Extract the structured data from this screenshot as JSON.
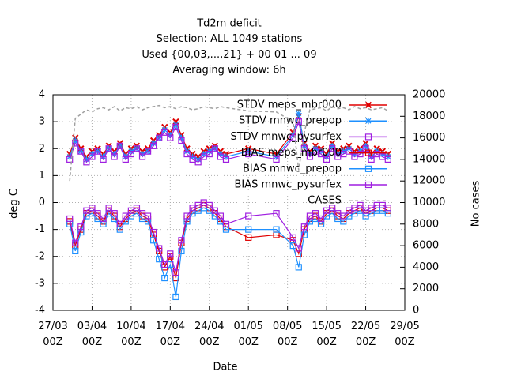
{
  "chart_data": {
    "type": "line",
    "title_lines": [
      "Td2m deficit",
      "Selection: ALL    1049 stations",
      "Used {00,03,...,21} + 00 01 ... 09",
      "Averaging window:  6h"
    ],
    "xlabel": "Date",
    "ylabel": "deg C",
    "y2label": "No cases",
    "x": [
      3,
      4,
      5,
      6,
      7,
      8,
      9,
      10,
      11,
      12,
      13,
      14,
      15,
      16,
      17,
      18,
      19,
      20,
      21,
      22,
      23,
      24,
      25,
      26,
      27,
      28,
      29,
      30,
      31,
      35,
      40,
      43,
      44,
      45,
      46,
      47,
      48,
      49,
      50,
      51,
      52,
      53,
      54,
      55,
      56,
      57,
      58,
      59,
      60
    ],
    "xlim": [
      0,
      63
    ],
    "xticks": [
      {
        "value": 0,
        "label": "27/03 00Z"
      },
      {
        "value": 7,
        "label": "03/04 00Z"
      },
      {
        "value": 14,
        "label": "10/04 00Z"
      },
      {
        "value": 21,
        "label": "17/04 00Z"
      },
      {
        "value": 28,
        "label": "24/04 00Z"
      },
      {
        "value": 35,
        "label": "01/05 00Z"
      },
      {
        "value": 42,
        "label": "08/05 00Z"
      },
      {
        "value": 49,
        "label": "15/05 00Z"
      },
      {
        "value": 56,
        "label": "22/05 00Z"
      },
      {
        "value": 63,
        "label": "29/05 00Z"
      }
    ],
    "ylim": [
      -4,
      4
    ],
    "yticks": [
      -4,
      -3,
      -2,
      -1,
      0,
      1,
      2,
      3,
      4
    ],
    "y2lim": [
      0,
      20000
    ],
    "y2ticks": [
      0,
      2000,
      4000,
      6000,
      8000,
      10000,
      12000,
      14000,
      16000,
      18000,
      20000
    ],
    "grid": true,
    "legend": "upper right",
    "series": [
      {
        "name": "STDV meps_mbr000",
        "color": "#e00000",
        "marker": "cross",
        "values": [
          1.8,
          2.4,
          2.0,
          1.7,
          1.9,
          2.0,
          1.8,
          2.1,
          1.9,
          2.2,
          1.8,
          2.0,
          2.1,
          1.9,
          2.0,
          2.3,
          2.5,
          2.8,
          2.6,
          3.0,
          2.5,
          2.0,
          1.8,
          1.7,
          1.9,
          2.0,
          2.1,
          1.9,
          1.8,
          2.0,
          1.8,
          2.6,
          3.2,
          2.2,
          1.9,
          2.1,
          2.0,
          1.8,
          2.2,
          1.9,
          2.0,
          2.1,
          1.9,
          2.0,
          2.2,
          1.8,
          2.0,
          1.9,
          1.8
        ]
      },
      {
        "name": "STDV mnwc_prepop",
        "color": "#1e90ff",
        "marker": "star",
        "values": [
          1.7,
          2.3,
          1.9,
          1.6,
          1.8,
          1.9,
          1.7,
          2.0,
          1.8,
          2.1,
          1.7,
          1.9,
          2.0,
          1.8,
          1.9,
          2.2,
          2.4,
          2.7,
          2.5,
          2.9,
          2.4,
          1.9,
          1.7,
          1.6,
          1.8,
          1.9,
          2.0,
          1.8,
          1.7,
          1.9,
          1.7,
          2.5,
          3.3,
          2.1,
          1.8,
          2.0,
          1.9,
          1.7,
          2.1,
          1.8,
          1.9,
          2.0,
          1.8,
          1.9,
          2.1,
          1.7,
          1.9,
          1.8,
          1.7
        ]
      },
      {
        "name": "STDV mnwc_pysurfex",
        "color": "#9f1fe0",
        "marker": "square",
        "values": [
          1.6,
          2.2,
          1.9,
          1.5,
          1.7,
          1.9,
          1.6,
          2.0,
          1.7,
          2.1,
          1.6,
          1.8,
          2.0,
          1.7,
          1.9,
          2.1,
          2.4,
          2.6,
          2.4,
          2.8,
          2.3,
          1.8,
          1.6,
          1.5,
          1.7,
          1.8,
          2.0,
          1.7,
          1.6,
          1.8,
          1.6,
          2.4,
          3.0,
          2.0,
          1.7,
          1.9,
          1.8,
          1.6,
          2.0,
          1.7,
          1.8,
          1.9,
          1.7,
          1.8,
          2.0,
          1.6,
          1.8,
          1.7,
          1.6
        ]
      },
      {
        "name": "BIAS meps_mbr000",
        "color": "#e00000",
        "marker": "square",
        "values": [
          -0.7,
          -1.6,
          -1.0,
          -0.4,
          -0.3,
          -0.5,
          -0.7,
          -0.3,
          -0.5,
          -0.9,
          -0.6,
          -0.4,
          -0.3,
          -0.5,
          -0.6,
          -1.2,
          -1.8,
          -2.4,
          -2.0,
          -2.8,
          -1.5,
          -0.6,
          -0.3,
          -0.2,
          -0.1,
          -0.2,
          -0.4,
          -0.6,
          -0.9,
          -1.3,
          -1.2,
          -1.4,
          -1.9,
          -1.0,
          -0.6,
          -0.5,
          -0.7,
          -0.4,
          -0.3,
          -0.5,
          -0.6,
          -0.4,
          -0.3,
          -0.2,
          -0.4,
          -0.3,
          -0.2,
          -0.2,
          -0.3
        ]
      },
      {
        "name": "BIAS mnwc_prepop",
        "color": "#1e90ff",
        "marker": "square",
        "values": [
          -0.8,
          -1.8,
          -1.1,
          -0.5,
          -0.4,
          -0.6,
          -0.8,
          -0.4,
          -0.6,
          -1.0,
          -0.7,
          -0.5,
          -0.4,
          -0.6,
          -0.7,
          -1.4,
          -2.1,
          -2.8,
          -2.3,
          -3.5,
          -1.8,
          -0.7,
          -0.4,
          -0.3,
          -0.2,
          -0.3,
          -0.5,
          -0.7,
          -1.0,
          -1.0,
          -1.0,
          -1.6,
          -2.4,
          -1.2,
          -0.7,
          -0.6,
          -0.8,
          -0.5,
          -0.4,
          -0.6,
          -0.7,
          -0.5,
          -0.4,
          -0.3,
          -0.5,
          -0.4,
          -0.3,
          -0.3,
          -0.4
        ]
      },
      {
        "name": "BIAS mnwc_pysurfex",
        "color": "#9f1fe0",
        "marker": "square",
        "values": [
          -0.6,
          -1.5,
          -0.9,
          -0.3,
          -0.2,
          -0.4,
          -0.6,
          -0.2,
          -0.4,
          -0.8,
          -0.5,
          -0.3,
          -0.2,
          -0.4,
          -0.5,
          -1.1,
          -1.7,
          -2.3,
          -1.9,
          -2.6,
          -1.4,
          -0.5,
          -0.2,
          -0.1,
          0.0,
          -0.1,
          -0.3,
          -0.5,
          -0.8,
          -0.5,
          -0.4,
          -1.3,
          -1.7,
          -0.9,
          -0.5,
          -0.4,
          -0.6,
          -0.3,
          -0.2,
          -0.4,
          -0.5,
          -0.3,
          -0.2,
          -0.1,
          -0.3,
          -0.2,
          -0.1,
          -0.1,
          -0.2
        ]
      },
      {
        "name": "CASES",
        "color": "#a0a0a0",
        "marker": "none",
        "dashed": true,
        "axis": "y2",
        "values": [
          12000,
          17800,
          18200,
          18600,
          18400,
          18700,
          18800,
          18600,
          18900,
          18500,
          18800,
          18700,
          18900,
          18600,
          18800,
          18900,
          19000,
          18800,
          18900,
          18700,
          18900,
          18800,
          18600,
          18700,
          18900,
          18800,
          18700,
          18900,
          18800,
          18500,
          18400,
          17500,
          13000,
          16500,
          18600,
          18700,
          18800,
          18500,
          18900,
          18700,
          18800,
          18600,
          18900,
          18700,
          18800,
          18600,
          18700,
          18800,
          18500
        ]
      }
    ]
  }
}
